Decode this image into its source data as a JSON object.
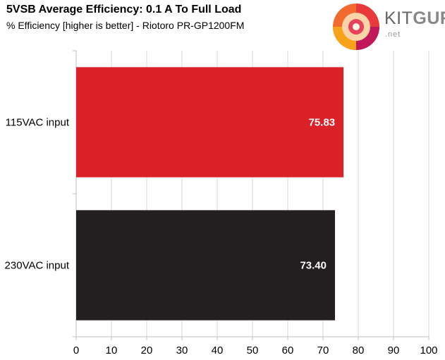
{
  "header": {
    "title": "5VSB Average Efficiency: 0.1 A To Full Load",
    "subtitle": "% Efficiency [higher is better] - Riotoro PR-GP1200FM"
  },
  "logo": {
    "brand_light": "KIT",
    "brand_bold": "GURU",
    "domain": ".net"
  },
  "chart_data": {
    "type": "bar",
    "orientation": "horizontal",
    "categories": [
      "115VAC input",
      "230VAC input"
    ],
    "values": [
      75.83,
      73.4
    ],
    "value_labels": [
      "75.83",
      "73.40"
    ],
    "colors": [
      "#da2128",
      "#231f20"
    ],
    "xlim": [
      0,
      100
    ],
    "xticks": [
      "0",
      "10",
      "20",
      "30",
      "40",
      "50",
      "60",
      "70",
      "80",
      "90",
      "100"
    ],
    "grid": true
  }
}
